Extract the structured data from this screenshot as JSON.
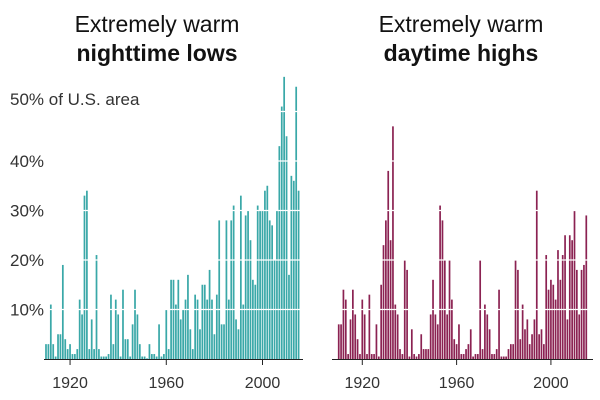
{
  "chart_data": [
    {
      "type": "bar",
      "title_line1": "Extremely warm",
      "title_line2": "nighttime lows",
      "unit_label": "50% of U.S. area",
      "color": "#3aa8a8",
      "x_start": 1910,
      "x_end": 2015,
      "xlim": [
        1910,
        2016
      ],
      "ylim": [
        0,
        60
      ],
      "y_ticks": [
        10,
        20,
        30,
        40
      ],
      "y_tick_labels": [
        "10%",
        "20%",
        "30%",
        "40%"
      ],
      "x_ticks": [
        1920,
        1960,
        2000
      ],
      "x_tick_labels": [
        "1920",
        "1960",
        "2000"
      ],
      "gridlines": "white",
      "values": [
        3,
        3,
        11,
        3,
        0.5,
        5,
        5,
        19,
        4,
        2,
        3,
        1,
        1,
        2,
        12,
        9,
        33,
        34,
        2,
        8,
        2,
        21,
        2,
        0.5,
        0.5,
        0.5,
        1,
        13,
        3,
        12,
        9,
        0.5,
        14,
        4,
        4,
        0.5,
        7,
        14,
        9,
        3,
        0.5,
        0.5,
        0,
        3,
        1,
        1,
        0.5,
        7,
        0.5,
        1,
        10,
        2,
        16,
        16,
        11,
        16,
        8,
        10,
        12,
        17,
        6,
        2,
        13,
        12,
        6,
        15,
        15,
        12,
        18,
        12,
        5,
        13,
        28,
        7,
        7,
        28,
        12,
        28,
        31,
        8,
        6,
        33,
        11,
        29,
        30,
        24,
        16,
        15,
        31,
        30,
        30,
        34,
        35,
        28,
        27,
        20,
        30,
        43,
        51,
        57,
        45,
        17,
        37,
        36,
        55,
        34
      ]
    },
    {
      "type": "bar",
      "title_line1": "Extremely warm",
      "title_line2": "daytime highs",
      "color": "#8b2252",
      "x_start": 1910,
      "x_end": 2015,
      "xlim": [
        1908,
        2017
      ],
      "ylim": [
        0,
        60
      ],
      "x_ticks": [
        1920,
        1960,
        2000
      ],
      "x_tick_labels": [
        "1920",
        "1960",
        "2000"
      ],
      "gridlines": "white",
      "values": [
        7,
        7,
        14,
        12,
        1,
        8,
        14,
        9,
        4,
        1,
        12,
        9,
        1,
        13,
        1,
        1,
        7,
        0.5,
        15,
        23,
        28,
        38,
        24,
        47,
        11,
        9,
        2,
        1,
        20,
        18,
        0.5,
        6,
        1,
        0.5,
        1,
        5,
        2,
        2,
        2,
        9,
        16,
        9,
        7,
        31,
        28,
        20,
        9,
        20,
        12,
        4,
        3,
        7,
        1,
        1,
        2,
        3,
        6,
        0.5,
        1,
        1,
        20,
        2,
        11,
        9,
        6,
        1,
        1,
        2,
        14,
        0.5,
        0.5,
        0.5,
        2,
        3,
        3,
        20,
        18,
        4,
        11,
        6,
        8,
        3,
        5,
        8,
        34,
        5,
        6,
        3,
        21,
        14,
        16,
        15,
        12,
        22,
        16,
        21,
        25,
        8,
        25,
        24,
        30,
        18,
        9,
        18,
        19,
        29
      ]
    }
  ]
}
